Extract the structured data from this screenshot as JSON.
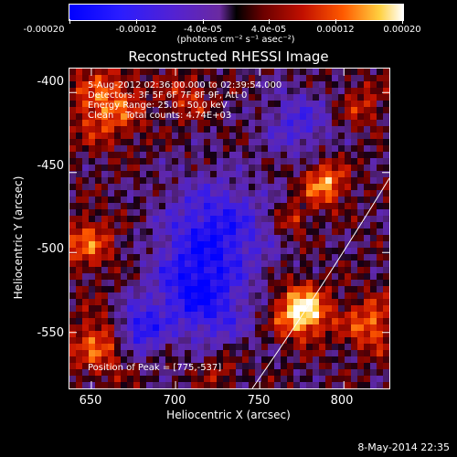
{
  "colorbar": {
    "tick_labels": [
      "-0.00020",
      "-0.00012",
      "-4.0e-05",
      "4.0e-05",
      "0.00012",
      "0.00020"
    ],
    "units_label": "(photons cm⁻² s⁻¹ asec⁻²)",
    "range": [
      -0.0002,
      0.0002
    ]
  },
  "image": {
    "title": "Reconstructed RHESSI Image",
    "info_lines": [
      "5-Aug-2012 02:36:00.000 to 02:39:54.000",
      "Detectors: 3F 5F 6F 7F 8F 9F, Att 0",
      "Energy Range: 25.0 - 50.0 keV",
      "Clean    Total counts: 4.74E+03"
    ],
    "peak_label": "Position of Peak = [775,-537]",
    "xlabel": "Heliocentric X (arcsec)",
    "ylabel": "Heliocentric Y (arcsec)",
    "x_ticks": [
      "650",
      "700",
      "750",
      "800"
    ],
    "y_ticks": [
      "-400",
      "-450",
      "-500",
      "-550"
    ],
    "x_range": [
      637,
      827
    ],
    "y_range": [
      -385,
      -585
    ],
    "peak_position": [
      775,
      -537
    ],
    "limb_line_colour": "#ffffff"
  },
  "footer": {
    "timestamp": "8-May-2014 22:35"
  }
}
